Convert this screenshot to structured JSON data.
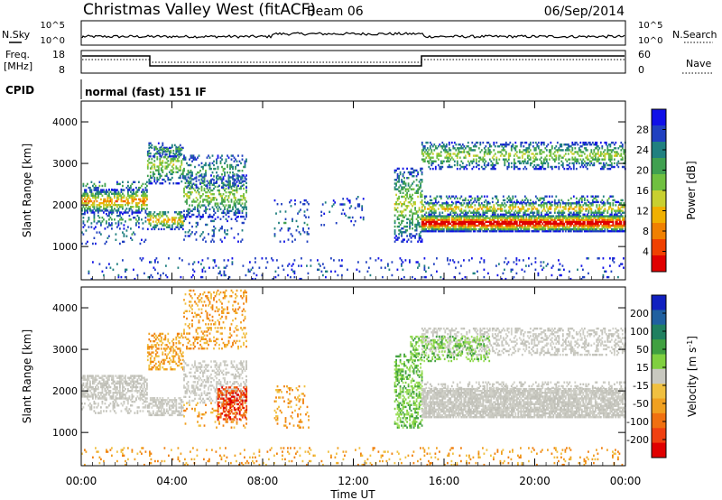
{
  "header": {
    "station": "Christmas Valley West (fitACF)",
    "beam": "Beam 06",
    "date": "06/Sep/2014"
  },
  "noise_panel": {
    "left_label": "N.Sky",
    "left_ticks": [
      "10^5",
      "10^0"
    ],
    "right_ticks": [
      "10^5",
      "10^0"
    ],
    "right_label": "N.Search"
  },
  "freq_panel": {
    "left_label": "Freq.",
    "left_unit": "[MHz]",
    "left_ticks": [
      "18",
      "8"
    ],
    "right_ticks": [
      "60",
      "0"
    ],
    "right_label": "Nave"
  },
  "cpid_panel": {
    "label": "CPID",
    "value": "normal (fast) 151 IF"
  },
  "chart_data": [
    {
      "type": "heatmap",
      "name": "power",
      "ylabel": "Slant Range [km]",
      "ylim": [
        200,
        4500
      ],
      "yticks": [
        1000,
        2000,
        3000,
        4000
      ],
      "x_range_hours": [
        0,
        24
      ],
      "colorbar_label": "Power [dB]",
      "colorbar_ticks": [
        "28",
        "24",
        "20",
        "16",
        "12",
        "8",
        "4"
      ],
      "colorbar_colors": [
        "#1010e8",
        "#2040c0",
        "#208080",
        "#40a050",
        "#70c040",
        "#c8d030",
        "#f0b000",
        "#f08000",
        "#f04000",
        "#e00000"
      ],
      "regions": [
        {
          "from_h": 0.0,
          "to_h": 2.9,
          "ranges": [
            [
              1800,
              2350,
              0.55
            ],
            [
              1450,
              1800,
              0.2
            ],
            [
              2350,
              2550,
              0.25
            ],
            [
              1050,
              1450,
              0.1
            ]
          ]
        },
        {
          "from_h": 2.9,
          "to_h": 4.5,
          "ranges": [
            [
              1400,
              1850,
              0.5
            ],
            [
              2500,
              3400,
              0.35
            ],
            [
              3150,
              3500,
              0.25
            ]
          ]
        },
        {
          "from_h": 4.5,
          "to_h": 7.3,
          "ranges": [
            [
              1700,
              2700,
              0.35
            ],
            [
              2400,
              3200,
              0.2
            ],
            [
              1100,
              1700,
              0.12
            ]
          ]
        },
        {
          "from_h": 8.5,
          "to_h": 10.0,
          "ranges": [
            [
              1100,
              2100,
              0.12
            ]
          ]
        },
        {
          "from_h": 10.5,
          "to_h": 12.5,
          "ranges": [
            [
              1500,
              2200,
              0.08
            ]
          ]
        },
        {
          "from_h": 13.8,
          "to_h": 15.0,
          "ranges": [
            [
              1100,
              2900,
              0.35
            ]
          ]
        },
        {
          "from_h": 15.0,
          "to_h": 24.0,
          "ranges": [
            [
              1350,
              1750,
              0.85
            ],
            [
              1750,
              2050,
              0.5
            ],
            [
              2050,
              2200,
              0.25
            ],
            [
              2850,
              3500,
              0.35
            ]
          ]
        },
        {
          "from_h": 0.0,
          "to_h": 24.0,
          "ranges": [
            [
              200,
              700,
              0.06
            ]
          ]
        }
      ]
    },
    {
      "type": "heatmap",
      "name": "velocity",
      "ylabel": "Slant Range [km]",
      "ylim": [
        200,
        4500
      ],
      "yticks": [
        1000,
        2000,
        3000,
        4000
      ],
      "x_range_hours": [
        0,
        24
      ],
      "colorbar_label": "Velocity [m s",
      "colorbar_unit_sup": "-1",
      "colorbar_unit_close": "]",
      "colorbar_ticks": [
        "200",
        "100",
        "50",
        "15",
        "-15",
        "-50",
        "-100",
        "-200"
      ],
      "colorbar_colors": [
        "#1020c0",
        "#2060a0",
        "#208060",
        "#40a040",
        "#80d040",
        "#c8c8c0",
        "#f0c040",
        "#f0a020",
        "#f07010",
        "#f04010",
        "#e00000"
      ],
      "regions": [
        {
          "from_h": 0.0,
          "to_h": 2.9,
          "ranges": [
            [
              1800,
              2350,
              0.6,
              "gray"
            ],
            [
              1450,
              1800,
              0.25,
              "gray"
            ]
          ]
        },
        {
          "from_h": 2.9,
          "to_h": 4.5,
          "ranges": [
            [
              1400,
              1850,
              0.55,
              "gray"
            ],
            [
              2500,
              3400,
              0.35,
              "orange"
            ]
          ]
        },
        {
          "from_h": 4.5,
          "to_h": 7.3,
          "ranges": [
            [
              1700,
              2700,
              0.35,
              "gray"
            ],
            [
              3000,
              4400,
              0.2,
              "orange"
            ],
            [
              1100,
              1700,
              0.12,
              "orange"
            ]
          ]
        },
        {
          "from_h": 6.0,
          "to_h": 7.3,
          "ranges": [
            [
              1300,
              2100,
              0.5,
              "red"
            ]
          ]
        },
        {
          "from_h": 8.5,
          "to_h": 10.0,
          "ranges": [
            [
              1100,
              2100,
              0.15,
              "orange"
            ]
          ]
        },
        {
          "from_h": 13.8,
          "to_h": 15.0,
          "ranges": [
            [
              1100,
              2900,
              0.4,
              "green"
            ]
          ]
        },
        {
          "from_h": 15.0,
          "to_h": 24.0,
          "ranges": [
            [
              1350,
              2050,
              0.8,
              "gray"
            ],
            [
              2050,
              2200,
              0.25,
              "gray"
            ],
            [
              2850,
              3500,
              0.35,
              "gray"
            ]
          ]
        },
        {
          "from_h": 14.5,
          "to_h": 18.0,
          "ranges": [
            [
              2700,
              3300,
              0.3,
              "green"
            ]
          ]
        },
        {
          "from_h": 0.0,
          "to_h": 24.0,
          "ranges": [
            [
              200,
              650,
              0.08,
              "orange"
            ]
          ]
        }
      ]
    }
  ],
  "x_axis": {
    "ticks": [
      "00:00",
      "04:00",
      "08:00",
      "12:00",
      "16:00",
      "20:00",
      "00:00"
    ],
    "label": "Time UT"
  }
}
